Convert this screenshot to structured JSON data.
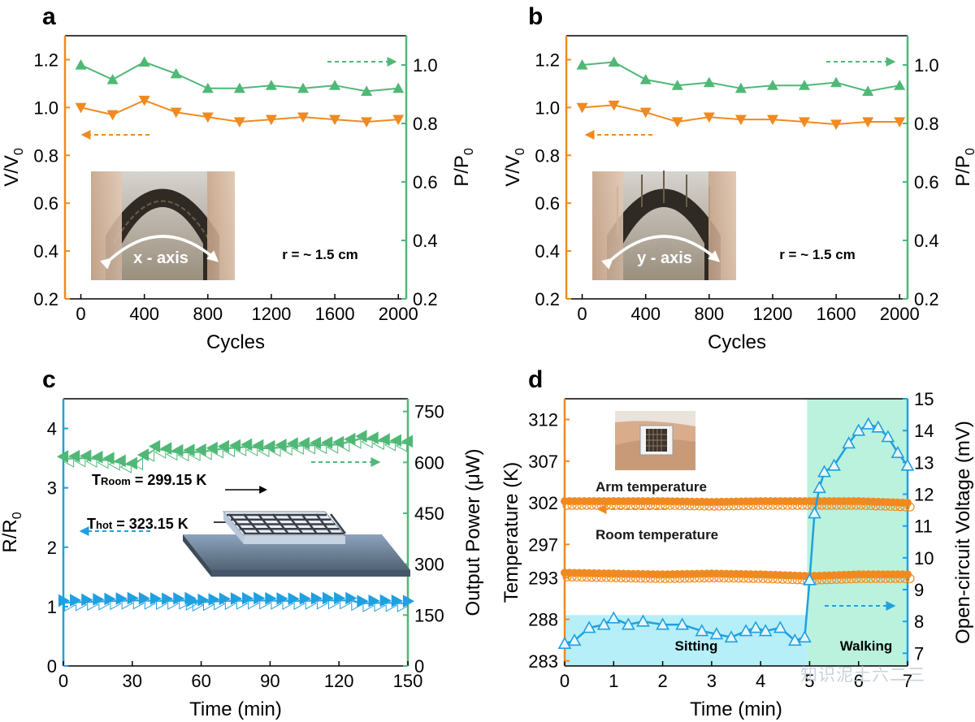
{
  "colors": {
    "orange": "#f08a20",
    "green": "#4fb876",
    "blue": "#1fa0e0",
    "shade_blue": "#a9ecf7",
    "shade_green": "#aef0d8",
    "axis_black": "#000000"
  },
  "watermark": "知识泥土六二三",
  "chart_data": [
    {
      "panel": "a",
      "type": "line",
      "xlabel": "Cycles",
      "ylabel_left": "V/V",
      "ylabel_left_sub": "0",
      "ylabel_right": "P/P",
      "ylabel_right_sub": "0",
      "xlim": [
        -100,
        2050
      ],
      "xticks": [
        0,
        400,
        800,
        1200,
        1600,
        2000
      ],
      "ylim_left": [
        0.2,
        1.3
      ],
      "yticks_left": [
        "0.2",
        "0.4",
        "0.6",
        "0.8",
        "1.0",
        "1.2"
      ],
      "ylim_right": [
        0.2,
        1.1
      ],
      "yticks_right": [
        "0.2",
        "0.4",
        "0.6",
        "0.8",
        "1.0"
      ],
      "series": [
        {
          "axis": "left",
          "marker": "triangle-down",
          "color": "#f08a20",
          "x": [
            0,
            200,
            400,
            600,
            800,
            1000,
            1200,
            1400,
            1600,
            1800,
            2000
          ],
          "values": [
            1.0,
            0.97,
            1.03,
            0.98,
            0.96,
            0.94,
            0.95,
            0.96,
            0.95,
            0.94,
            0.95
          ]
        },
        {
          "axis": "right",
          "marker": "triangle-up",
          "color": "#4fb876",
          "x": [
            0,
            200,
            400,
            600,
            800,
            1000,
            1200,
            1400,
            1600,
            1800,
            2000
          ],
          "values": [
            1.0,
            0.95,
            1.01,
            0.97,
            0.92,
            0.92,
            0.93,
            0.92,
            0.93,
            0.91,
            0.92
          ]
        }
      ],
      "annotations": {
        "inset_label": "x - axis",
        "radius_label": "r = ~ 1.5 cm"
      }
    },
    {
      "panel": "b",
      "type": "line",
      "xlabel": "Cycles",
      "ylabel_left": "V/V",
      "ylabel_left_sub": "0",
      "ylabel_right": "P/P",
      "ylabel_right_sub": "0",
      "xlim": [
        -100,
        2050
      ],
      "xticks": [
        0,
        400,
        800,
        1200,
        1600,
        2000
      ],
      "ylim_left": [
        0.2,
        1.3
      ],
      "yticks_left": [
        "0.2",
        "0.4",
        "0.6",
        "0.8",
        "1.0",
        "1.2"
      ],
      "ylim_right": [
        0.2,
        1.1
      ],
      "yticks_right": [
        "0.2",
        "0.4",
        "0.6",
        "0.8",
        "1.0"
      ],
      "series": [
        {
          "axis": "left",
          "marker": "triangle-down",
          "color": "#f08a20",
          "x": [
            0,
            200,
            400,
            600,
            800,
            1000,
            1200,
            1400,
            1600,
            1800,
            2000
          ],
          "values": [
            1.0,
            1.01,
            0.98,
            0.94,
            0.96,
            0.95,
            0.95,
            0.94,
            0.93,
            0.94,
            0.94
          ]
        },
        {
          "axis": "right",
          "marker": "triangle-up",
          "color": "#4fb876",
          "x": [
            0,
            200,
            400,
            600,
            800,
            1000,
            1200,
            1400,
            1600,
            1800,
            2000
          ],
          "values": [
            1.0,
            1.01,
            0.95,
            0.93,
            0.94,
            0.92,
            0.93,
            0.93,
            0.94,
            0.91,
            0.93
          ]
        }
      ],
      "annotations": {
        "inset_label": "y - axis",
        "radius_label": "r = ~ 1.5 cm"
      }
    },
    {
      "panel": "c",
      "type": "line",
      "xlabel": "Time (min)",
      "ylabel_left": "R/R",
      "ylabel_left_sub": "0",
      "ylabel_right": "Output Power (μW)",
      "xlim": [
        0,
        150
      ],
      "xticks": [
        0,
        30,
        60,
        90,
        120,
        150
      ],
      "ylim_left": [
        0,
        4.5
      ],
      "yticks_left": [
        "0",
        "1",
        "2",
        "3",
        "4"
      ],
      "ylim_right": [
        0,
        787.5
      ],
      "yticks_right": [
        "0",
        "150",
        "300",
        "450",
        "600",
        "750"
      ],
      "series": [
        {
          "axis": "left",
          "marker": "triangle-right",
          "color": "#1fa0e0",
          "x": [
            0,
            15,
            30,
            45,
            55,
            56,
            70,
            85,
            100,
            115,
            125,
            130,
            140,
            150
          ],
          "values": [
            1.06,
            1.08,
            1.1,
            1.09,
            1.1,
            1.06,
            1.09,
            1.1,
            1.09,
            1.1,
            1.1,
            1.05,
            1.06,
            1.05
          ]
        },
        {
          "axis": "right",
          "marker": "triangle-left",
          "color": "#4fb876",
          "x": [
            0,
            10,
            20,
            30,
            40,
            50,
            60,
            70,
            80,
            90,
            100,
            110,
            120,
            130,
            140,
            150
          ],
          "values": [
            610,
            612,
            605,
            590,
            640,
            628,
            630,
            640,
            645,
            640,
            648,
            650,
            652,
            670,
            660,
            655
          ]
        }
      ],
      "annotations": {
        "t_room": "T",
        "t_room_sub": "Room",
        "t_room_value": " = 299.15 K",
        "t_hot": "T",
        "t_hot_sub": "hot",
        "t_hot_value": " = 323.15 K"
      }
    },
    {
      "panel": "d",
      "type": "line",
      "xlabel": "Time (min)",
      "ylabel_left": "Temperature (K)",
      "ylabel_right": "Open-circuit Voltage (mV)",
      "xlim": [
        0,
        7
      ],
      "xticks": [
        0,
        1,
        2,
        3,
        4,
        5,
        6,
        7
      ],
      "ylim_left": [
        282.4,
        314.5
      ],
      "yticks_left": [
        "283",
        "288",
        "293",
        "297",
        "302",
        "307",
        "312"
      ],
      "ylim_right": [
        6.6,
        15.0
      ],
      "yticks_right": [
        "7",
        "8",
        "9",
        "10",
        "11",
        "12",
        "13",
        "14",
        "15"
      ],
      "series": [
        {
          "axis": "left",
          "name": "Arm temperature",
          "marker": "circle",
          "color": "#f08a20",
          "x": [
            0,
            1,
            2,
            3,
            4,
            5,
            6,
            7
          ],
          "values": [
            302.0,
            302.0,
            302.0,
            301.9,
            302.0,
            302.0,
            302.0,
            301.8
          ]
        },
        {
          "axis": "left",
          "name": "Room temperature",
          "marker": "circle",
          "color": "#f08a20",
          "x": [
            0,
            1,
            2,
            3,
            4,
            5,
            6,
            7
          ],
          "values": [
            293.4,
            293.3,
            293.2,
            293.3,
            293.2,
            293.0,
            293.2,
            293.2
          ]
        },
        {
          "axis": "right",
          "marker": "triangle-up",
          "color": "#1fa0e0",
          "x": [
            0,
            0.2,
            0.5,
            0.8,
            1.0,
            1.3,
            1.6,
            2.0,
            2.4,
            2.8,
            3.1,
            3.4,
            3.7,
            3.9,
            4.1,
            4.4,
            4.7,
            4.9,
            5.0,
            5.1,
            5.2,
            5.3,
            5.5,
            5.8,
            6.0,
            6.2,
            6.4,
            6.6,
            6.8,
            7.0
          ],
          "values": [
            7.3,
            7.4,
            7.8,
            7.9,
            8.1,
            7.9,
            8.0,
            7.9,
            7.9,
            7.7,
            7.6,
            7.5,
            7.7,
            7.8,
            7.7,
            7.8,
            7.4,
            7.5,
            9.3,
            11.4,
            12.2,
            12.7,
            12.9,
            13.6,
            14.0,
            14.2,
            14.1,
            13.8,
            13.3,
            12.9
          ]
        }
      ],
      "annotations": {
        "arm_label": "Arm temperature",
        "room_label": "Room temperature",
        "sitting_label": "Sitting",
        "walking_label": "Walking",
        "walking_start": 4.95
      }
    }
  ],
  "panel_labels": [
    "a",
    "b",
    "c",
    "d"
  ]
}
